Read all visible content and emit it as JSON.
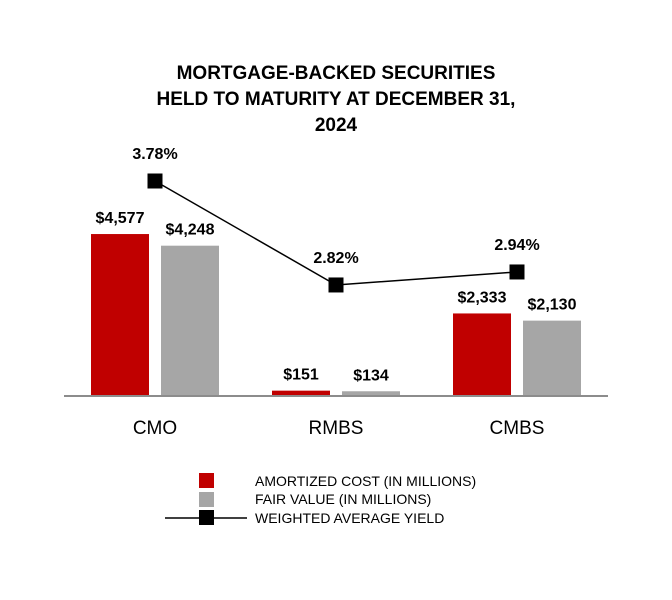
{
  "colors": {
    "amortized": "#c00000",
    "fair": "#a6a6a6",
    "yield": "#000000",
    "axis": "#8c8c8c"
  },
  "chart_data": {
    "type": "bar",
    "title_lines": [
      "MORTGAGE-BACKED SECURITIES",
      "HELD TO MATURITY AT DECEMBER 31,",
      "2024"
    ],
    "categories": [
      "CMO",
      "RMBS",
      "CMBS"
    ],
    "series": [
      {
        "name": "AMORTIZED COST (IN MILLIONS)",
        "values": [
          4577,
          151,
          2333
        ],
        "labels": [
          "$4,577",
          "$151",
          "$2,333"
        ]
      },
      {
        "name": "FAIR VALUE (IN MILLIONS)",
        "values": [
          4248,
          134,
          2130
        ],
        "labels": [
          "$4,248",
          "$134",
          "$2,130"
        ]
      }
    ],
    "line_series": {
      "name": "WEIGHTED AVERAGE YIELD",
      "values": [
        3.78,
        2.82,
        2.94
      ],
      "labels": [
        "3.78%",
        "2.82%",
        "2.94%"
      ]
    },
    "ylim": [
      0,
      5200
    ],
    "legend": [
      "AMORTIZED COST (IN MILLIONS)",
      "FAIR VALUE (IN MILLIONS)",
      "WEIGHTED AVERAGE YIELD"
    ]
  }
}
